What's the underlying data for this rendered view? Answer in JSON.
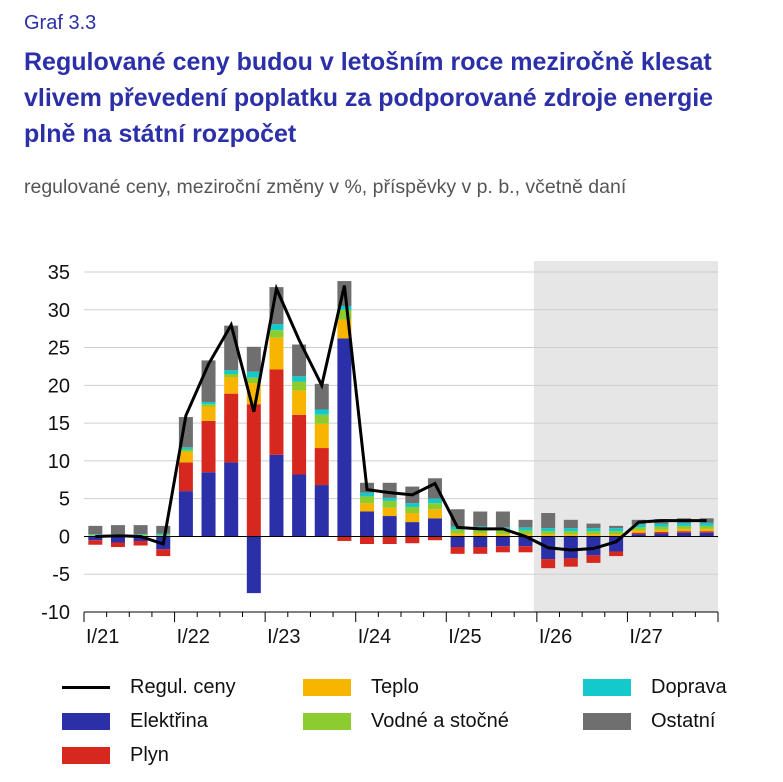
{
  "header": {
    "graf": "Graf 3.3",
    "title": "Regulované ceny budou v letošním roce meziročně klesat vlivem převedení poplatku za podporované zdroje energie plně na státní rozpočet",
    "subtitle": "regulované ceny, meziroční změny v %, příspěvky v p. b., včetně daní"
  },
  "colors": {
    "elektrina": "#2b2fa8",
    "plyn": "#d7281f",
    "teplo": "#f7b500",
    "vodne": "#8ccc2e",
    "doprava": "#14c9c9",
    "ostatni": "#6f6f6f",
    "line": "#000000",
    "forecast_bg": "#e6e6e6"
  },
  "chart_data": {
    "type": "bar",
    "stacked": true,
    "categories": [
      "I/21",
      "II/21",
      "III/21",
      "IV/21",
      "I/22",
      "II/22",
      "III/22",
      "IV/22",
      "I/23",
      "II/23",
      "III/23",
      "IV/23",
      "I/24",
      "II/24",
      "III/24",
      "IV/24",
      "I/25",
      "II/25",
      "III/25",
      "IV/25",
      "I/26",
      "II/26",
      "III/26",
      "IV/26",
      "I/27",
      "II/27",
      "III/27",
      "IV/27"
    ],
    "tick_labels": [
      "I/21",
      "I/22",
      "I/23",
      "I/24",
      "I/25",
      "I/26",
      "I/27"
    ],
    "ylim": [
      -10,
      35
    ],
    "yticks": [
      -10,
      -5,
      0,
      5,
      10,
      15,
      20,
      25,
      30,
      35
    ],
    "forecast_start": "I/26",
    "series": [
      {
        "key": "elektrina",
        "name": "Elektřina",
        "values": [
          -0.5,
          -0.8,
          -0.6,
          -1.7,
          6.0,
          8.5,
          9.8,
          -7.5,
          10.8,
          8.2,
          6.8,
          26.2,
          3.3,
          2.7,
          1.9,
          2.4,
          -1.4,
          -1.4,
          -1.3,
          -1.3,
          -3.0,
          -2.9,
          -2.5,
          -2.0,
          0.3,
          0.4,
          0.5,
          0.5
        ]
      },
      {
        "key": "plyn",
        "name": "Plyn",
        "values": [
          -0.6,
          -0.6,
          -0.6,
          -0.9,
          3.8,
          6.8,
          9.1,
          17.5,
          11.3,
          7.9,
          4.9,
          -0.6,
          -1.0,
          -1.0,
          -0.9,
          -0.5,
          -0.9,
          -0.9,
          -0.8,
          -0.8,
          -1.2,
          -1.1,
          -1.0,
          -0.6,
          0.2,
          0.2,
          0.2,
          0.2
        ]
      },
      {
        "key": "teplo",
        "name": "Teplo",
        "values": [
          0.1,
          0.1,
          0.1,
          0.1,
          1.4,
          1.9,
          2.2,
          2.8,
          4.2,
          3.2,
          3.2,
          2.5,
          1.1,
          1.1,
          1.2,
          1.2,
          0.4,
          0.4,
          0.3,
          0.3,
          0.3,
          0.3,
          0.3,
          0.3,
          0.3,
          0.3,
          0.3,
          0.3
        ]
      },
      {
        "key": "vodne",
        "name": "Vodné a stočné",
        "values": [
          0.1,
          0.1,
          0.1,
          0.1,
          0.3,
          0.3,
          0.4,
          0.7,
          1.0,
          1.2,
          1.2,
          1.3,
          0.9,
          0.9,
          0.8,
          0.8,
          0.5,
          0.5,
          0.5,
          0.5,
          0.4,
          0.4,
          0.4,
          0.4,
          0.4,
          0.4,
          0.4,
          0.4
        ]
      },
      {
        "key": "doprava",
        "name": "Doprava",
        "values": [
          0.1,
          0.1,
          0.1,
          0.2,
          0.3,
          0.3,
          0.5,
          0.8,
          0.8,
          0.7,
          0.7,
          0.5,
          0.5,
          0.4,
          0.5,
          0.6,
          0.4,
          0.4,
          0.4,
          0.4,
          0.4,
          0.4,
          0.4,
          0.4,
          0.4,
          0.4,
          0.4,
          0.4
        ]
      },
      {
        "key": "ostatni",
        "name": "Ostatní",
        "values": [
          1.1,
          1.2,
          1.2,
          1.0,
          4.0,
          5.5,
          5.9,
          3.3,
          4.9,
          4.2,
          3.4,
          3.3,
          1.3,
          2.0,
          2.2,
          2.7,
          2.3,
          2.0,
          2.1,
          1.0,
          2.0,
          1.1,
          0.6,
          0.3,
          0.6,
          0.6,
          0.6,
          0.6
        ]
      }
    ],
    "line": {
      "key": "line",
      "name": "Regul. ceny",
      "values": [
        0.0,
        0.1,
        0.0,
        -1.0,
        16.0,
        22.8,
        28.0,
        16.5,
        32.8,
        26.0,
        20.0,
        33.2,
        6.2,
        5.8,
        5.5,
        7.0,
        1.2,
        1.0,
        1.0,
        0.0,
        -1.5,
        -1.8,
        -1.6,
        -0.7,
        1.9,
        2.1,
        2.1,
        2.1
      ]
    }
  },
  "legend": [
    {
      "key": "line",
      "label": "Regul. ceny"
    },
    {
      "key": "elektrina",
      "label": "Elektřina"
    },
    {
      "key": "plyn",
      "label": "Plyn"
    },
    {
      "key": "teplo",
      "label": "Teplo"
    },
    {
      "key": "vodne",
      "label": "Vodné a stočné"
    },
    {
      "key": "doprava",
      "label": "Doprava"
    },
    {
      "key": "ostatni",
      "label": "Ostatní"
    }
  ]
}
